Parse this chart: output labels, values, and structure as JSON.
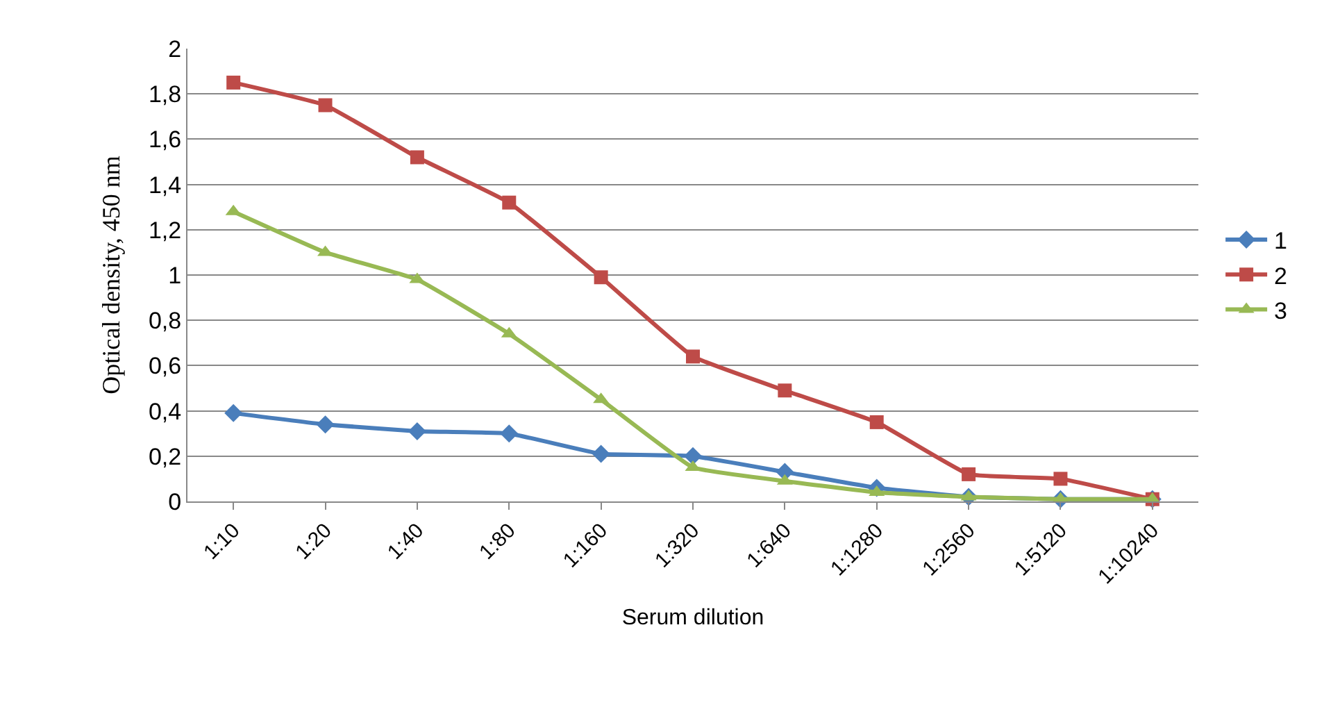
{
  "chart_data": {
    "type": "line",
    "xlabel": "Serum dilution",
    "ylabel": "Optical density, 450 nm",
    "categories": [
      "1:10",
      "1:20",
      "1:40",
      "1:80",
      "1:160",
      "1:320",
      "1:640",
      "1:1280",
      "1:2560",
      "1:5120",
      "1:10240"
    ],
    "series": [
      {
        "name": "1",
        "color": "#4a7ebb",
        "marker": "diamond",
        "values": [
          0.39,
          0.34,
          0.31,
          0.3,
          0.21,
          0.2,
          0.13,
          0.06,
          0.02,
          0.01,
          0.01
        ]
      },
      {
        "name": "2",
        "color": "#be4b48",
        "marker": "square",
        "values": [
          1.85,
          1.75,
          1.52,
          1.32,
          0.99,
          0.64,
          0.49,
          0.35,
          0.12,
          0.1,
          0.01
        ]
      },
      {
        "name": "3",
        "color": "#98b954",
        "marker": "triangle",
        "values": [
          1.28,
          1.1,
          0.98,
          0.74,
          0.45,
          0.15,
          0.09,
          0.04,
          0.02,
          0.01,
          0.01
        ]
      }
    ],
    "ylim": [
      0,
      2
    ],
    "yticks": [
      0,
      {
        "value": 0.2,
        "label": "0,2"
      },
      {
        "value": 0.4,
        "label": "0,4"
      },
      {
        "value": 0.6,
        "label": "0,6"
      },
      {
        "value": 0.8,
        "label": "0,8"
      },
      1,
      {
        "value": 1.2,
        "label": "1,2"
      },
      {
        "value": 1.4,
        "label": "1,4"
      },
      {
        "value": 1.6,
        "label": "1,6"
      },
      {
        "value": 1.8,
        "label": "1,8"
      },
      2
    ],
    "grid": "y",
    "legend": "right",
    "line_style": "solid"
  }
}
